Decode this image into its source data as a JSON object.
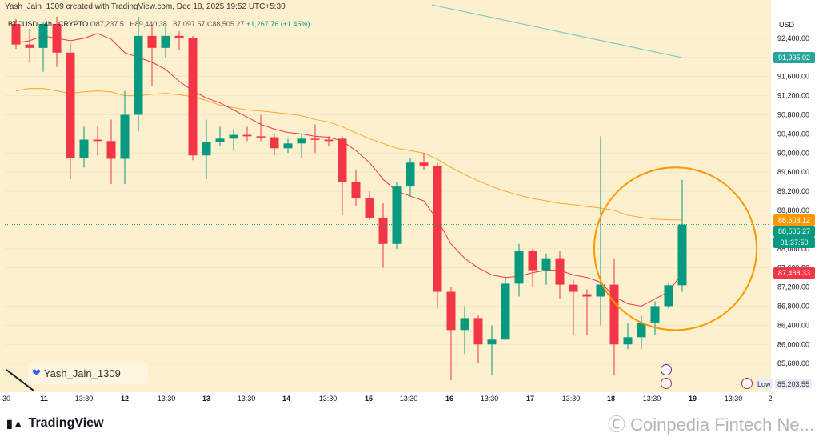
{
  "header": {
    "text": "Yash_Jain_1309 created with TradingView.com, Dec 18, 2025 19:52 UTC+5:30"
  },
  "symbol_line": {
    "ticker": "BTCUSD · 4h · CRYPTO",
    "o": "O87,237.51",
    "h": "H89,440.38",
    "l": "L87,097.57",
    "c": "C88,505.27",
    "change": "+1,267.76 (+1.45%)"
  },
  "user_tag": "Yash_Jain_1309",
  "logo": "TradingView",
  "coinpedia": "Ⓒ Coinpedia Fintech Ne...",
  "currency": "USD",
  "low_label": {
    "prefix": "Low",
    "value": "85,203.55"
  },
  "price_labels": [
    {
      "value": "91,995.02",
      "price": 91995.02,
      "color": "#26a69a",
      "text_color": "#ffffff"
    },
    {
      "value": "88,603.12",
      "price": 88603.12,
      "color": "#ff9800",
      "text_color": "#ffffff"
    },
    {
      "value": "88,505.27",
      "price": 88505.27,
      "color": "#089981",
      "text_color": "#ffffff"
    },
    {
      "value": "01:37:50",
      "price": 88250,
      "color": "#089981",
      "text_color": "#ffffff"
    },
    {
      "value": "87,488.33",
      "price": 87488.33,
      "color": "#f23645",
      "text_color": "#ffffff"
    }
  ],
  "colors": {
    "background": "#fdf0cf",
    "up": "#089981",
    "down": "#f23645",
    "ema_short": "#f23645",
    "ema_long": "#ffa726",
    "ema_200": "#80cbc4",
    "circle": "#ff9800",
    "grid": "#f2e6c4"
  },
  "chart_data": {
    "type": "candlestick",
    "symbol": "BTCUSD",
    "interval": "4h",
    "ylim": [
      85000,
      92900
    ],
    "y_ticks": [
      "92,400.00",
      "92,000.00",
      "91,600.00",
      "91,200.00",
      "90,800.00",
      "90,400.00",
      "90,000.00",
      "89,600.00",
      "89,200.00",
      "88,800.00",
      "88,000.00",
      "87,600.00",
      "87,200.00",
      "86,800.00",
      "86,400.00",
      "86,000.00",
      "85,600.00"
    ],
    "x_ticks": [
      "30",
      "11",
      "13:30",
      "12",
      "13:30",
      "13",
      "13:30",
      "14",
      "13:30",
      "15",
      "13:30",
      "16",
      "13:30",
      "17",
      "13:30",
      "18",
      "13:30",
      "19",
      "13:30",
      "2"
    ],
    "candles": [
      {
        "o": 92700,
        "h": 92800,
        "l": 92180,
        "c": 92270
      },
      {
        "o": 92270,
        "h": 92600,
        "l": 91900,
        "c": 92200
      },
      {
        "o": 92200,
        "h": 92750,
        "l": 91700,
        "c": 92700
      },
      {
        "o": 92700,
        "h": 92850,
        "l": 91800,
        "c": 92100
      },
      {
        "o": 92100,
        "h": 92300,
        "l": 89450,
        "c": 89900
      },
      {
        "o": 89900,
        "h": 90550,
        "l": 89700,
        "c": 90280
      },
      {
        "o": 90280,
        "h": 90550,
        "l": 89950,
        "c": 90250
      },
      {
        "o": 90250,
        "h": 90700,
        "l": 89350,
        "c": 89880
      },
      {
        "o": 89880,
        "h": 91300,
        "l": 89350,
        "c": 90800
      },
      {
        "o": 90800,
        "h": 92850,
        "l": 90450,
        "c": 92450
      },
      {
        "o": 92450,
        "h": 92700,
        "l": 91400,
        "c": 92200
      },
      {
        "o": 92200,
        "h": 92700,
        "l": 92000,
        "c": 92450
      },
      {
        "o": 92450,
        "h": 92550,
        "l": 92150,
        "c": 92400
      },
      {
        "o": 92400,
        "h": 92450,
        "l": 89850,
        "c": 89950
      },
      {
        "o": 89950,
        "h": 90700,
        "l": 89450,
        "c": 90230
      },
      {
        "o": 90230,
        "h": 90550,
        "l": 90150,
        "c": 90300
      },
      {
        "o": 90300,
        "h": 90500,
        "l": 90050,
        "c": 90380
      },
      {
        "o": 90380,
        "h": 90550,
        "l": 90250,
        "c": 90350
      },
      {
        "o": 90350,
        "h": 90800,
        "l": 90250,
        "c": 90330
      },
      {
        "o": 90330,
        "h": 90400,
        "l": 89950,
        "c": 90100
      },
      {
        "o": 90100,
        "h": 90300,
        "l": 90000,
        "c": 90200
      },
      {
        "o": 90200,
        "h": 90400,
        "l": 89900,
        "c": 90300
      },
      {
        "o": 90300,
        "h": 90600,
        "l": 90000,
        "c": 90280
      },
      {
        "o": 90280,
        "h": 90350,
        "l": 90150,
        "c": 90250
      },
      {
        "o": 90300,
        "h": 90350,
        "l": 88700,
        "c": 89400
      },
      {
        "o": 89400,
        "h": 89650,
        "l": 88900,
        "c": 89050
      },
      {
        "o": 89050,
        "h": 89200,
        "l": 88600,
        "c": 88650
      },
      {
        "o": 88650,
        "h": 88950,
        "l": 87600,
        "c": 88100
      },
      {
        "o": 88100,
        "h": 89400,
        "l": 88000,
        "c": 89300
      },
      {
        "o": 89300,
        "h": 89900,
        "l": 89100,
        "c": 89800
      },
      {
        "o": 89800,
        "h": 90000,
        "l": 89650,
        "c": 89720
      },
      {
        "o": 89720,
        "h": 89800,
        "l": 86750,
        "c": 87100
      },
      {
        "o": 87100,
        "h": 87200,
        "l": 85250,
        "c": 86300
      },
      {
        "o": 86300,
        "h": 86800,
        "l": 85800,
        "c": 86550
      },
      {
        "o": 86550,
        "h": 86600,
        "l": 85600,
        "c": 86000
      },
      {
        "o": 86000,
        "h": 86400,
        "l": 85350,
        "c": 86100
      },
      {
        "o": 86100,
        "h": 87400,
        "l": 86100,
        "c": 87270
      },
      {
        "o": 87270,
        "h": 88100,
        "l": 87000,
        "c": 87950
      },
      {
        "o": 87950,
        "h": 88000,
        "l": 87200,
        "c": 87550
      },
      {
        "o": 87550,
        "h": 87900,
        "l": 87250,
        "c": 87800
      },
      {
        "o": 87800,
        "h": 87950,
        "l": 86950,
        "c": 87250
      },
      {
        "o": 87250,
        "h": 87350,
        "l": 86200,
        "c": 87100
      },
      {
        "o": 87050,
        "h": 87150,
        "l": 86200,
        "c": 87000
      },
      {
        "o": 87000,
        "h": 90350,
        "l": 86400,
        "c": 87250
      },
      {
        "o": 87250,
        "h": 87800,
        "l": 85350,
        "c": 86000
      },
      {
        "o": 86000,
        "h": 86450,
        "l": 85900,
        "c": 86150
      },
      {
        "o": 86150,
        "h": 86600,
        "l": 85900,
        "c": 86450
      },
      {
        "o": 86450,
        "h": 86900,
        "l": 86200,
        "c": 86800
      },
      {
        "o": 86800,
        "h": 87300,
        "l": 86750,
        "c": 87237.51
      },
      {
        "o": 87237.51,
        "h": 89440.38,
        "l": 87097.57,
        "c": 88505.27
      }
    ],
    "ema_short": [
      92300,
      92350,
      92450,
      92400,
      92350,
      92400,
      92500,
      92380,
      92100,
      92000,
      91900,
      91750,
      91500,
      91300,
      91150,
      91050,
      90900,
      90750,
      90600,
      90500,
      90430,
      90400,
      90350,
      90330,
      90250,
      90050,
      89800,
      89450,
      89200,
      89100,
      89000,
      88600,
      88100,
      87800,
      87600,
      87450,
      87400,
      87420,
      87500,
      87550,
      87550,
      87450,
      87400,
      87300,
      87000,
      86850,
      86800,
      86950,
      87100,
      87488.33
    ],
    "ema_long": [
      91300,
      91350,
      91350,
      91300,
      91250,
      91280,
      91300,
      91280,
      91200,
      91200,
      91230,
      91250,
      91220,
      91180,
      91100,
      91000,
      90950,
      90900,
      90880,
      90850,
      90820,
      90780,
      90700,
      90650,
      90550,
      90420,
      90300,
      90200,
      90100,
      90050,
      90000,
      89870,
      89700,
      89550,
      89420,
      89300,
      89200,
      89120,
      89050,
      89000,
      88950,
      88920,
      88880,
      88850,
      88800,
      88700,
      88650,
      88620,
      88605,
      88603.12
    ],
    "ema_200": {
      "start_index": 30,
      "start_value": 93100,
      "end_index": 49,
      "end_value": 91995.02
    },
    "highlight_circle": {
      "center_index": 48.5,
      "center_price": 88000,
      "price_radius": 1700
    }
  }
}
